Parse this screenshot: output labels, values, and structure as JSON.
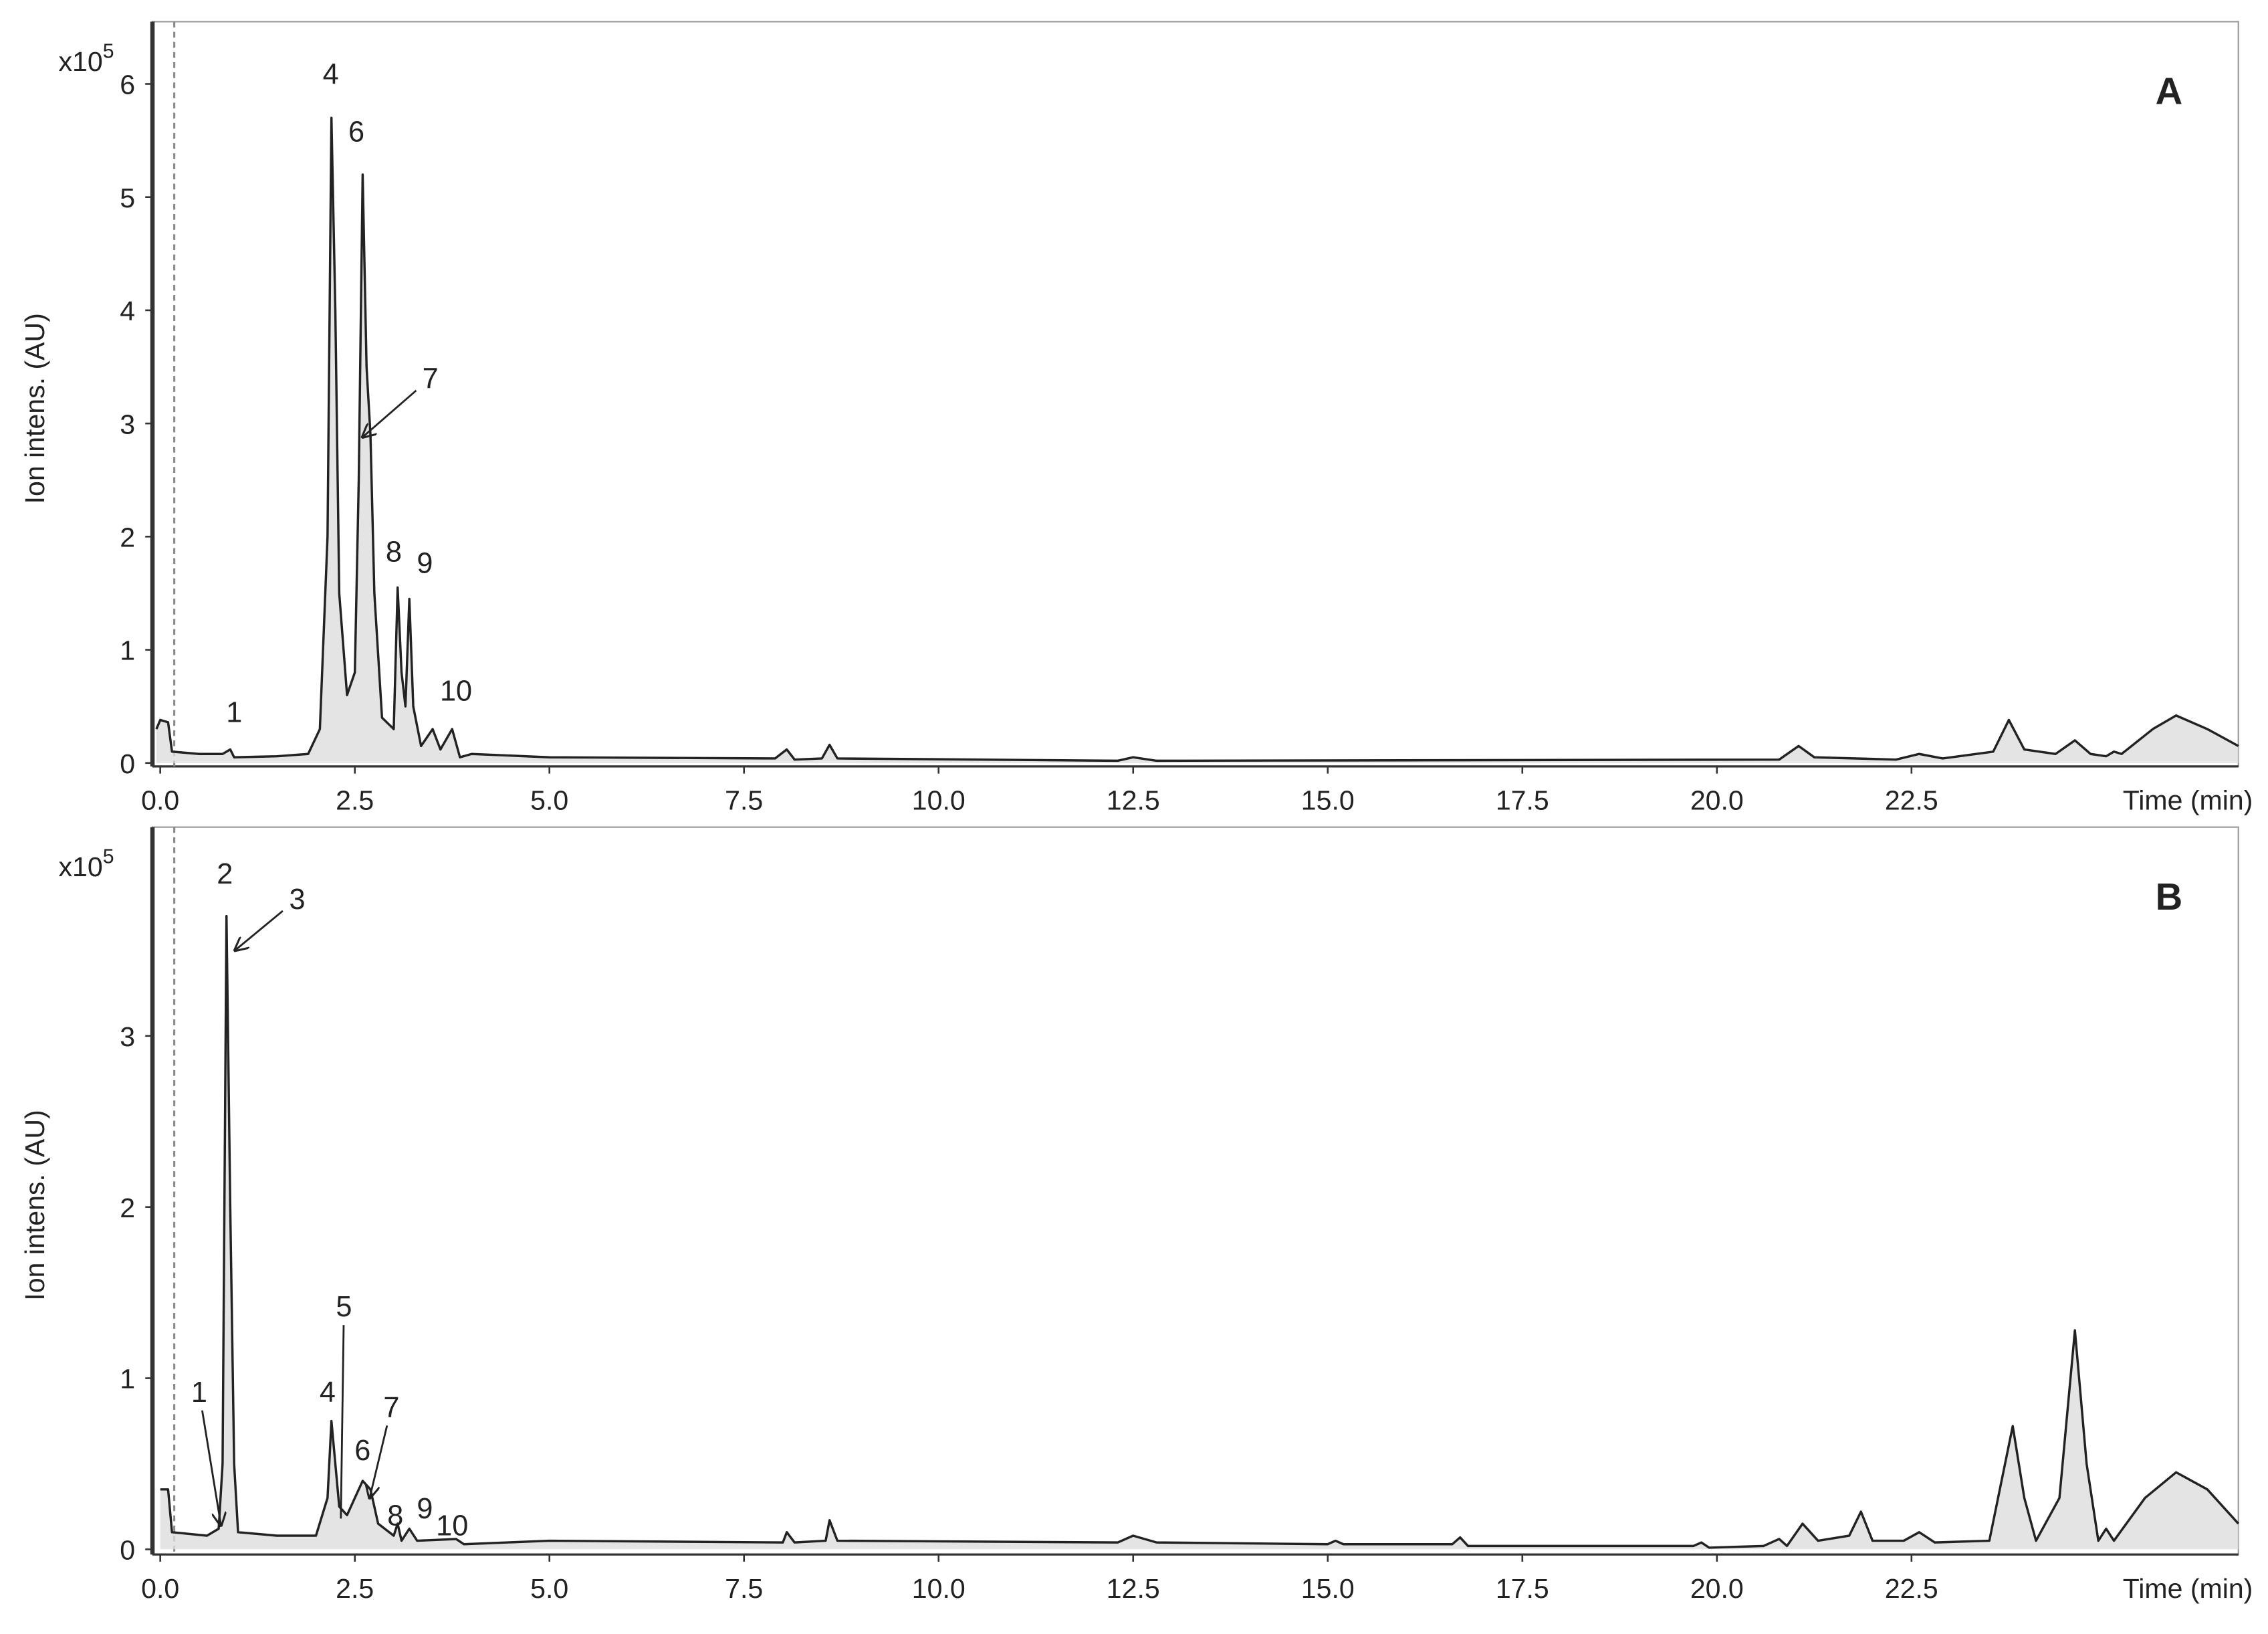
{
  "chart_data": [
    {
      "type": "line",
      "title": "A",
      "y_label": "Ion intens. (AU)",
      "x_label": "Time (min)",
      "y_scale_label": {
        "base": "x10",
        "exponent": "5"
      },
      "color": "#222222",
      "dashed_x": 0.18,
      "xlim": [
        -0.1,
        26.7
      ],
      "ylim": [
        -0.03,
        6.55
      ],
      "xticks": [
        {
          "value": 0,
          "label": "0.0"
        },
        2.5,
        {
          "value": 5,
          "label": "5.0"
        },
        7.5,
        {
          "value": 10,
          "label": "10.0"
        },
        12.5,
        {
          "value": 15,
          "label": "15.0"
        },
        17.5,
        {
          "value": 20,
          "label": "20.0"
        },
        22.5
      ],
      "yticks": [
        0,
        1,
        2,
        3,
        4,
        5,
        6
      ],
      "x": [
        -0.05,
        0.0,
        0.1,
        0.15,
        0.5,
        0.8,
        0.9,
        0.95,
        1.5,
        1.9,
        2.05,
        2.15,
        2.2,
        2.25,
        2.3,
        2.4,
        2.5,
        2.55,
        2.6,
        2.65,
        2.7,
        2.75,
        2.85,
        3.0,
        3.05,
        3.1,
        3.15,
        3.2,
        3.25,
        3.35,
        3.5,
        3.6,
        3.75,
        3.85,
        4.0,
        5.0,
        7.9,
        8.05,
        8.15,
        8.5,
        8.6,
        8.7,
        12.3,
        12.5,
        12.8,
        20.8,
        21.05,
        21.25,
        22.3,
        22.6,
        22.9,
        23.55,
        23.75,
        23.95,
        24.35,
        24.6,
        24.8,
        25.0,
        25.1,
        25.2,
        25.6,
        25.9,
        26.3,
        26.7
      ],
      "values": [
        0.3,
        0.38,
        0.36,
        0.1,
        0.08,
        0.08,
        0.12,
        0.05,
        0.06,
        0.08,
        0.3,
        2.0,
        5.7,
        4.0,
        1.5,
        0.6,
        0.8,
        2.5,
        5.2,
        3.5,
        2.9,
        1.5,
        0.4,
        0.3,
        1.55,
        0.8,
        0.5,
        1.45,
        0.5,
        0.15,
        0.3,
        0.12,
        0.3,
        0.05,
        0.08,
        0.05,
        0.04,
        0.12,
        0.03,
        0.04,
        0.16,
        0.04,
        0.02,
        0.05,
        0.02,
        0.03,
        0.15,
        0.05,
        0.03,
        0.08,
        0.04,
        0.1,
        0.38,
        0.12,
        0.08,
        0.2,
        0.08,
        0.06,
        0.1,
        0.08,
        0.3,
        0.42,
        0.3,
        0.15
      ],
      "annotations": [
        {
          "text": "1",
          "x": 0.95,
          "y": 0.45
        },
        {
          "text": "4",
          "x": 2.19,
          "y": 6.09
        },
        {
          "text": "6",
          "x": 2.52,
          "y": 5.58
        },
        {
          "text": "7",
          "x": 3.47,
          "y": 3.4,
          "arrow_to": [
            2.6,
            2.88
          ]
        },
        {
          "text": "8",
          "x": 3.0,
          "y": 1.87
        },
        {
          "text": "9",
          "x": 3.4,
          "y": 1.77
        },
        {
          "text": "10",
          "x": 3.8,
          "y": 0.64
        }
      ]
    },
    {
      "type": "line",
      "title": "B",
      "y_label": "Ion intens. (AU)",
      "x_label": "Time (min)",
      "y_scale_label": {
        "base": "x10",
        "exponent": "5"
      },
      "color": "#222222",
      "dashed_x": 0.18,
      "xlim": [
        -0.1,
        26.7
      ],
      "ylim": [
        -0.03,
        4.22
      ],
      "xticks": [
        {
          "value": 0,
          "label": "0.0"
        },
        2.5,
        {
          "value": 5,
          "label": "5.0"
        },
        7.5,
        {
          "value": 10,
          "label": "10.0"
        },
        12.5,
        {
          "value": 15,
          "label": "15.0"
        },
        17.5,
        {
          "value": 20,
          "label": "20.0"
        },
        22.5
      ],
      "yticks": [
        0,
        1,
        2,
        3
      ],
      "x": [
        0.0,
        0.1,
        0.15,
        0.6,
        0.75,
        0.8,
        0.85,
        0.9,
        0.95,
        1.0,
        1.5,
        2.0,
        2.15,
        2.2,
        2.25,
        2.3,
        2.4,
        2.5,
        2.6,
        2.7,
        2.8,
        3.0,
        3.05,
        3.1,
        3.2,
        3.3,
        3.8,
        3.9,
        5.0,
        8.0,
        8.05,
        8.15,
        8.55,
        8.6,
        8.7,
        12.3,
        12.5,
        12.8,
        15.0,
        15.1,
        15.2,
        16.6,
        16.7,
        16.8,
        19.7,
        19.8,
        19.9,
        20.6,
        20.8,
        20.9,
        21.1,
        21.3,
        21.7,
        21.85,
        22.0,
        22.4,
        22.6,
        22.8,
        23.5,
        23.8,
        23.95,
        24.1,
        24.4,
        24.6,
        24.75,
        24.9,
        25.0,
        25.1,
        25.5,
        25.9,
        26.3,
        26.7
      ],
      "values": [
        0.35,
        0.35,
        0.1,
        0.08,
        0.12,
        0.5,
        3.7,
        2.0,
        0.5,
        0.1,
        0.08,
        0.08,
        0.3,
        0.75,
        0.5,
        0.25,
        0.2,
        0.3,
        0.4,
        0.35,
        0.15,
        0.08,
        0.15,
        0.05,
        0.12,
        0.05,
        0.06,
        0.03,
        0.05,
        0.04,
        0.1,
        0.04,
        0.05,
        0.17,
        0.05,
        0.04,
        0.08,
        0.04,
        0.03,
        0.05,
        0.03,
        0.03,
        0.07,
        0.02,
        0.02,
        0.04,
        0.01,
        0.02,
        0.06,
        0.02,
        0.15,
        0.05,
        0.08,
        0.22,
        0.05,
        0.05,
        0.1,
        0.04,
        0.05,
        0.72,
        0.3,
        0.05,
        0.3,
        1.28,
        0.5,
        0.05,
        0.12,
        0.05,
        0.3,
        0.45,
        0.35,
        0.15
      ],
      "annotations": [
        {
          "text": "1",
          "x": 0.5,
          "y": 0.92,
          "arrow_to": [
            0.78,
            0.14
          ]
        },
        {
          "text": "2",
          "x": 0.83,
          "y": 3.95
        },
        {
          "text": "3",
          "x": 1.76,
          "y": 3.8,
          "arrow_to": [
            0.96,
            3.5
          ]
        },
        {
          "text": "4",
          "x": 2.15,
          "y": 0.92
        },
        {
          "text": "5",
          "x": 2.36,
          "y": 1.42,
          "line_to": [
            2.32,
            0.18
          ]
        },
        {
          "text": "6",
          "x": 2.6,
          "y": 0.58
        },
        {
          "text": "7",
          "x": 2.97,
          "y": 0.83,
          "arrow_to": [
            2.69,
            0.3
          ]
        },
        {
          "text": "8",
          "x": 3.02,
          "y": 0.2
        },
        {
          "text": "9",
          "x": 3.4,
          "y": 0.24
        },
        {
          "text": "10",
          "x": 3.75,
          "y": 0.14
        }
      ]
    }
  ]
}
